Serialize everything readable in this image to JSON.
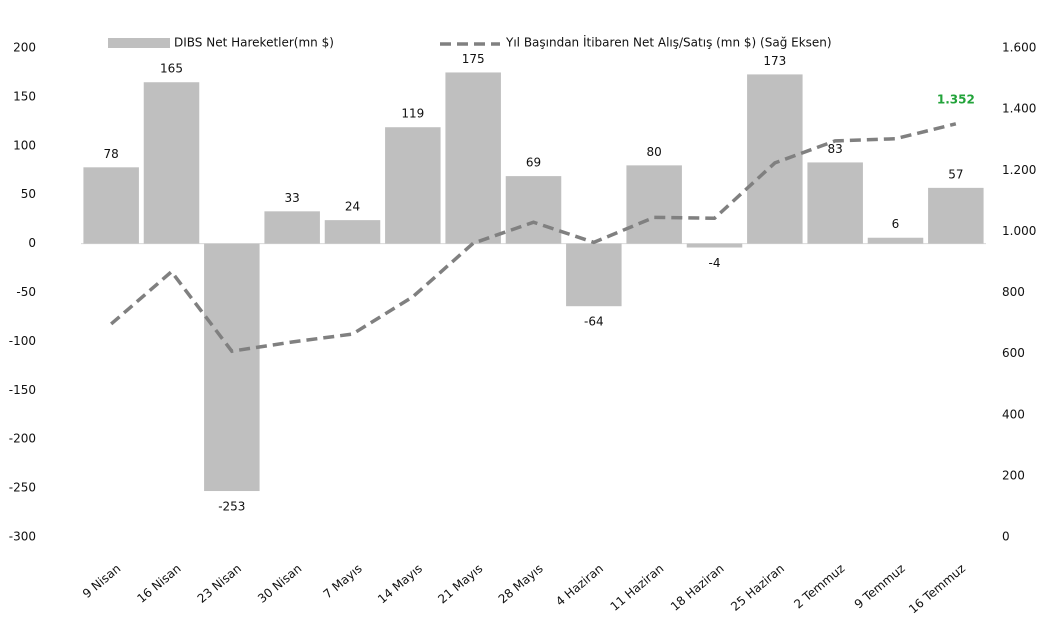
{
  "chart_data": {
    "type": "bar",
    "categories": [
      "9 Nisan",
      "16 Nisan",
      "23 Nisan",
      "30 Nisan",
      "7 Mayıs",
      "14 Mayıs",
      "21 Mayıs",
      "28 Mayıs",
      "4 Haziran",
      "11 Haziran",
      "18 Haziran",
      "25 Haziran",
      "2 Temmuz",
      "9 Temmuz",
      "16 Temmuz"
    ],
    "series": [
      {
        "name": "DIBS Net Hareketler(mn $)",
        "type": "bar",
        "color": "#bfbfbf",
        "values": [
          78,
          165,
          -253,
          33,
          24,
          119,
          175,
          69,
          -64,
          80,
          -4,
          173,
          83,
          6,
          57
        ]
      },
      {
        "name": "Yıl Başından İtibaren Net Alış/Satış (mn $) (Sağ Eksen)",
        "type": "line",
        "axis": "y2",
        "color": "#808080",
        "values": [
          697,
          868,
          608,
          638,
          664,
          786,
          961,
          1030,
          964,
          1046,
          1043,
          1224,
          1296,
          1303,
          1352
        ],
        "value_labels": [
          null,
          null,
          null,
          null,
          null,
          null,
          null,
          null,
          null,
          null,
          null,
          null,
          null,
          null,
          "1.352"
        ],
        "label_color": "#22a33a"
      }
    ],
    "ylim": [
      -300,
      200
    ],
    "yticks": [
      -300,
      -250,
      -200,
      -150,
      -100,
      -50,
      0,
      50,
      100,
      150,
      200
    ],
    "y2lim": [
      0,
      1600
    ],
    "y2ticks": [
      0,
      200,
      400,
      600,
      800,
      {
        "value": 1000,
        "label": "1.000"
      },
      {
        "value": 1200,
        "label": "1.200"
      },
      {
        "value": 1400,
        "label": "1.400"
      },
      {
        "value": 1600,
        "label": "1.600"
      }
    ],
    "legend": "top"
  }
}
